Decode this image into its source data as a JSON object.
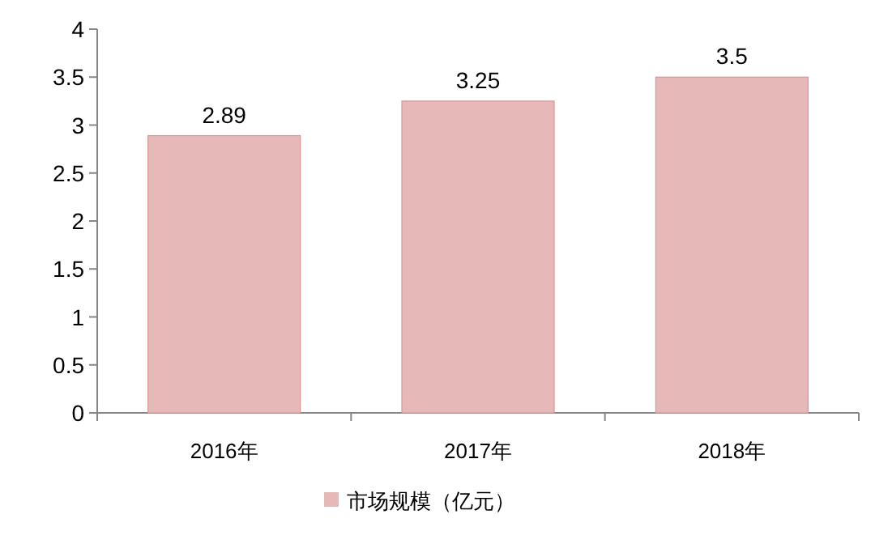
{
  "chart_data": {
    "type": "bar",
    "categories": [
      "2016年",
      "2017年",
      "2018年"
    ],
    "series": [
      {
        "name": "市场规模（亿元）",
        "color": "#e6b9b8",
        "values": [
          2.89,
          3.25,
          3.5
        ]
      }
    ],
    "ylim": [
      0,
      4
    ],
    "yticks": [
      0,
      0.5,
      1,
      1.5,
      2,
      2.5,
      3,
      3.5,
      4
    ],
    "data_labels": true,
    "legend": "bottom",
    "grid": false
  }
}
